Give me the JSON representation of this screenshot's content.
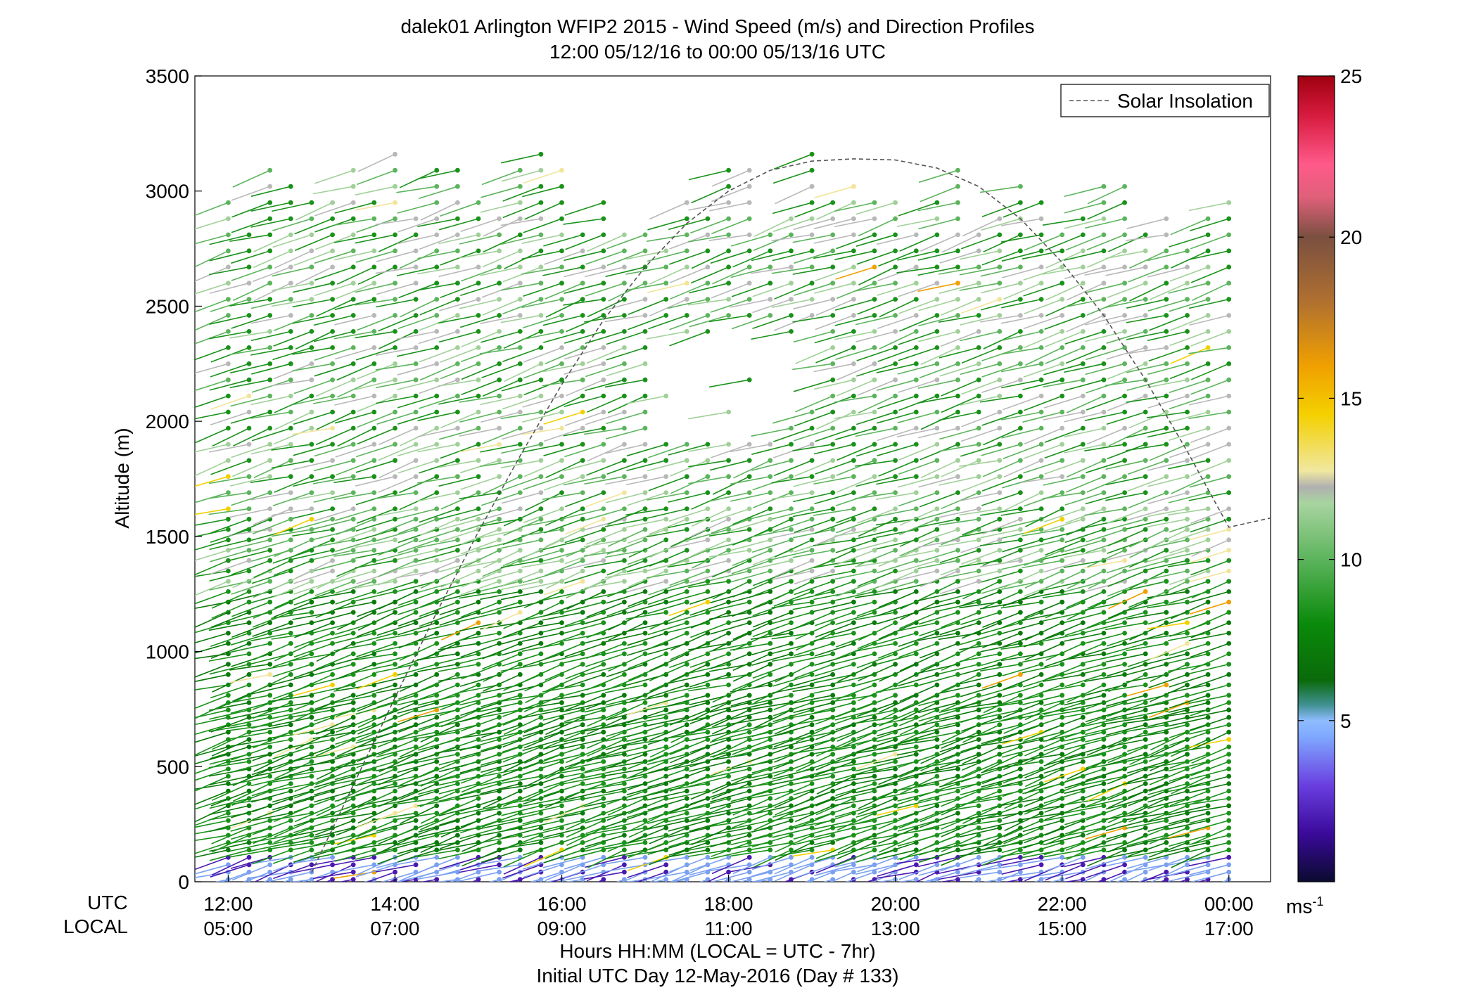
{
  "chart_data": {
    "type": "scatter",
    "title": "dalek01 Arlington WFIP2 2015 - Wind Speed (m/s) and Direction Profiles",
    "subtitle": "12:00 05/12/16 to 00:00 05/13/16  UTC",
    "ylabel": "Altitude (m)",
    "xlabel": "Hours HH:MM  (LOCAL = UTC - 7hr)",
    "xlabel2": "Initial UTC Day 12-May-2016 (Day # 133)",
    "x_row_labels": [
      "UTC",
      "LOCAL"
    ],
    "xlim": [
      11.6,
      24.5
    ],
    "ylim": [
      0,
      3500
    ],
    "xticks_utc": [
      "12:00",
      "14:00",
      "16:00",
      "18:00",
      "20:00",
      "22:00",
      "00:00"
    ],
    "xticks_local": [
      "05:00",
      "07:00",
      "09:00",
      "11:00",
      "13:00",
      "15:00",
      "17:00"
    ],
    "xtick_values": [
      12,
      14,
      16,
      18,
      20,
      22,
      24
    ],
    "yticks": [
      0,
      500,
      1000,
      1500,
      2000,
      2500,
      3000,
      3500
    ],
    "legend": {
      "label": "Solar Insolation",
      "position": "top-right"
    },
    "colorbar": {
      "min": 0,
      "max": 25,
      "ticks": [
        5,
        10,
        15,
        20,
        25
      ],
      "unit": "ms",
      "unit_exp": "-1"
    },
    "solar_insolation": {
      "x": [
        13.0,
        13.5,
        14.0,
        14.5,
        15.0,
        15.5,
        16.0,
        16.5,
        17.0,
        17.5,
        18.0,
        18.5,
        19.0,
        19.5,
        20.0,
        20.5,
        21.0,
        21.5,
        22.0,
        22.5,
        23.0,
        23.5,
        24.0,
        24.5
      ],
      "y": [
        40,
        420,
        800,
        1170,
        1520,
        1850,
        2160,
        2440,
        2670,
        2860,
        3000,
        3090,
        3130,
        3140,
        3135,
        3100,
        3020,
        2880,
        2690,
        2460,
        2180,
        1870,
        1540,
        1580
      ]
    },
    "profile_times": [
      12.0,
      24.0
    ],
    "profile_step_hours": 0.25,
    "description_units": "wind speed in m/s, altitude in m"
  }
}
